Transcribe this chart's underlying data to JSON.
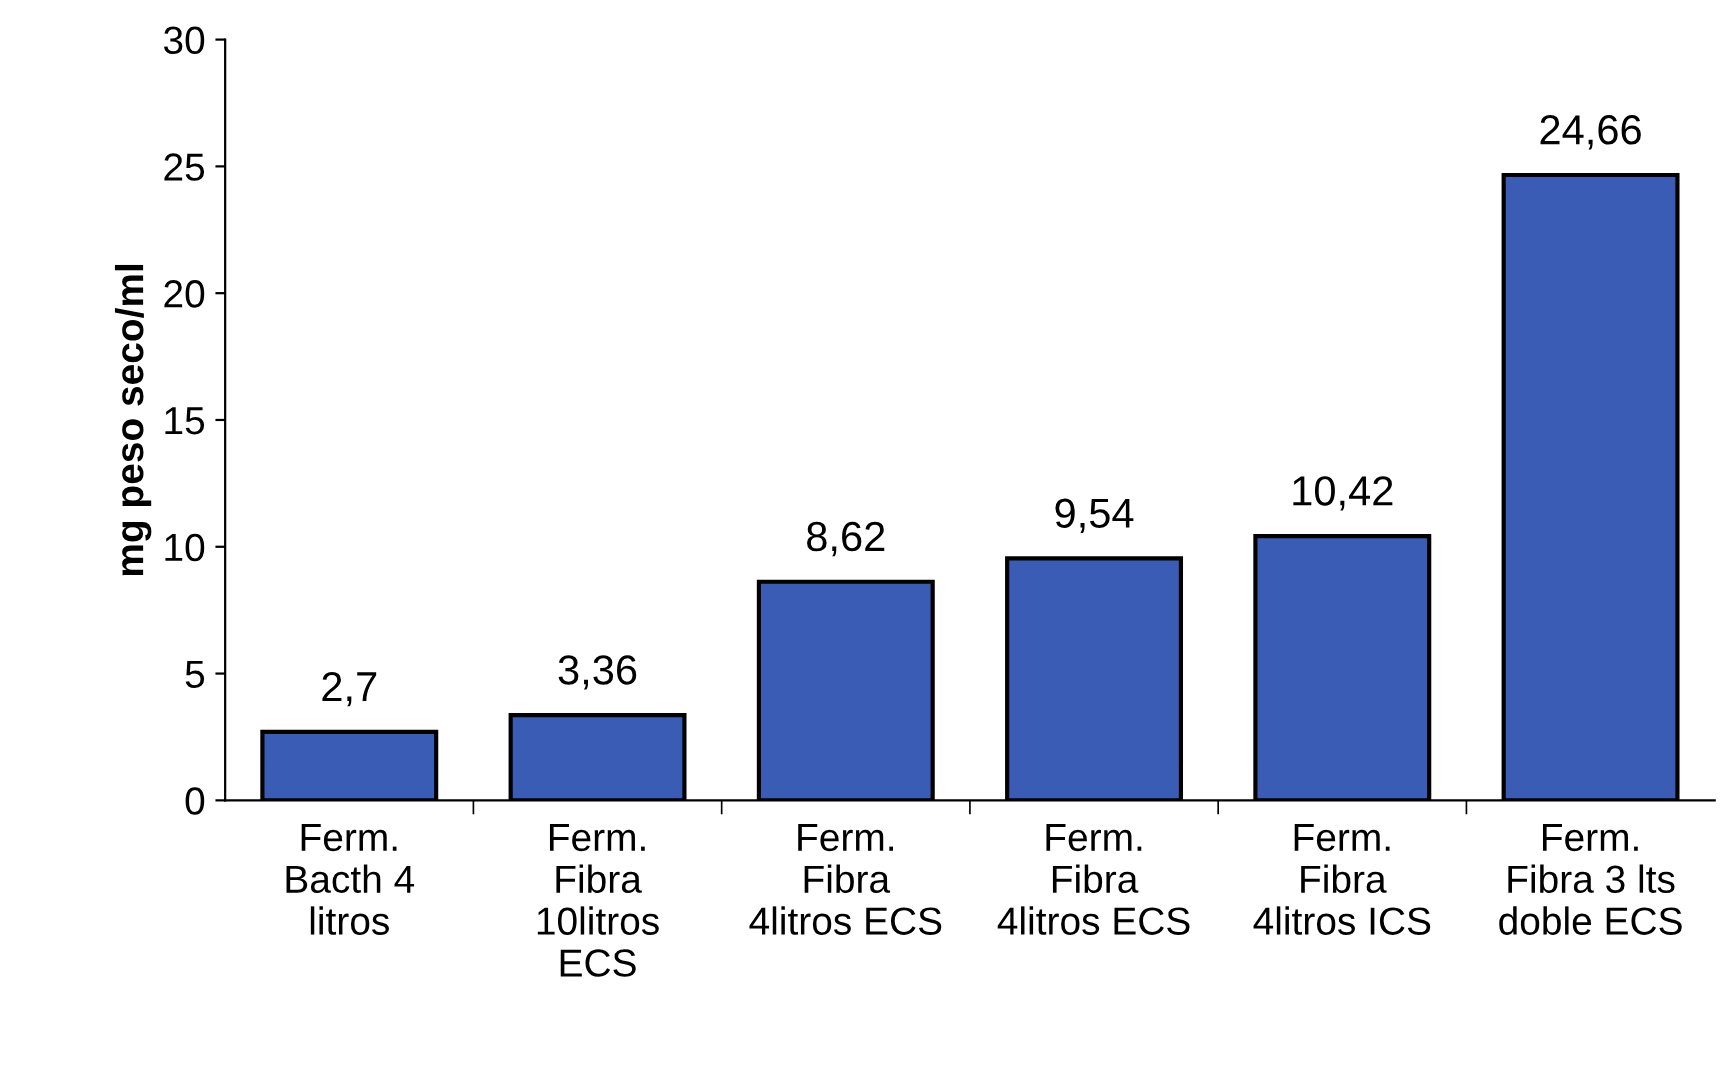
{
  "chart_data": {
    "type": "bar",
    "ylabel": "mg peso seco/ml",
    "categories": [
      "Ferm.\nBacth 4\nlitros",
      "Ferm.\nFibra\n10litros\nECS",
      "Ferm.\nFibra\n4litros ECS",
      "Ferm.\nFibra\n4litros ECS",
      "Ferm.\nFibra\n4litros ICS",
      "Ferm.\nFibra 3 lts\ndoble ECS"
    ],
    "values": [
      2.7,
      3.36,
      8.62,
      9.54,
      10.42,
      24.66
    ],
    "value_labels": [
      "2,7",
      "3,36",
      "8,62",
      "9,54",
      "10,42",
      "24,66"
    ],
    "color": "#3a5cb4",
    "ylim": [
      0,
      30
    ],
    "yticks": [
      0,
      5,
      10,
      15,
      20,
      25,
      30
    ],
    "grid": false,
    "legend": false
  }
}
